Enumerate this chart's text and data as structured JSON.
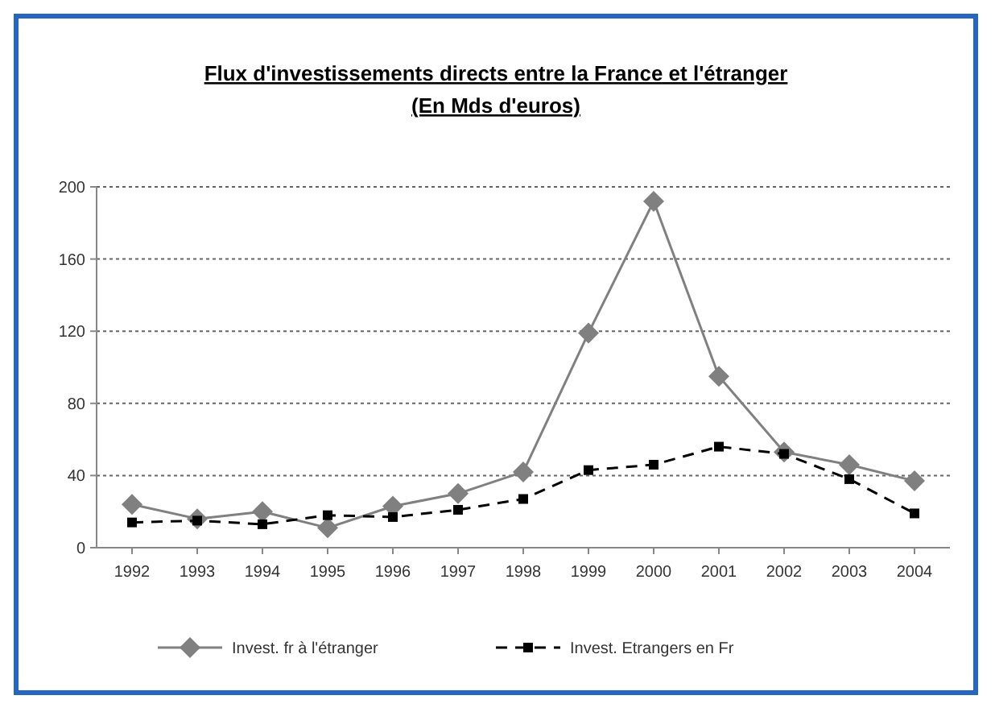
{
  "chart_data": {
    "type": "line",
    "title": "Flux d'investissements directs entre la France et l'étranger",
    "subtitle": "(En Mds d'euros)",
    "categories": [
      "1992",
      "1993",
      "1994",
      "1995",
      "1996",
      "1997",
      "1998",
      "1999",
      "2000",
      "2001",
      "2002",
      "2003",
      "2004"
    ],
    "series": [
      {
        "name": "Invest. fr à l'étranger",
        "color": "#808080",
        "marker": "diamond",
        "line_style": "solid",
        "values": [
          24,
          16,
          20,
          11,
          23,
          30,
          42,
          119,
          192,
          95,
          53,
          46,
          37
        ]
      },
      {
        "name": "Invest. Etrangers en Fr",
        "color": "#000000",
        "marker": "square",
        "line_style": "dashed",
        "values": [
          14,
          15,
          13,
          18,
          17,
          21,
          27,
          43,
          46,
          56,
          52,
          38,
          19
        ]
      }
    ],
    "ylim": [
      0,
      200
    ],
    "yticks": [
      0,
      40,
      80,
      120,
      160,
      200
    ],
    "grid": "y",
    "legend": "bottom"
  }
}
